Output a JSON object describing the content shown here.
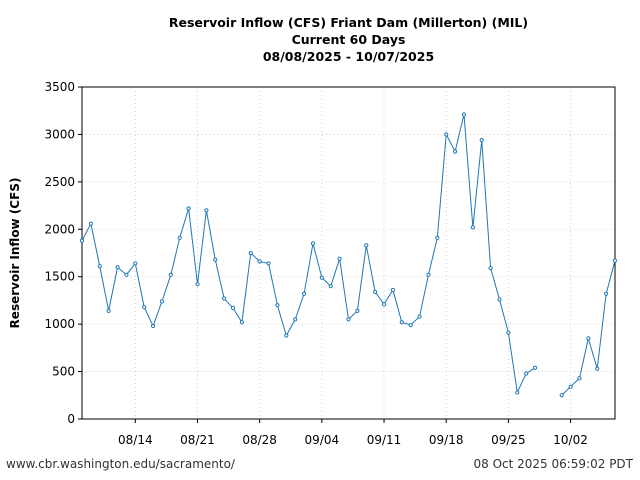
{
  "chart_data": {
    "type": "line",
    "title_lines": [
      "Reservoir Inflow (CFS) Friant Dam (Millerton) (MIL)",
      "Current 60 Days",
      "08/08/2025 - 10/07/2025"
    ],
    "xlabel": "",
    "ylabel": "Reservoir Inflow (CFS)",
    "x_tick_labels": [
      "08/14",
      "08/21",
      "08/28",
      "09/04",
      "09/11",
      "09/18",
      "09/25",
      "10/02"
    ],
    "y_tick_labels": [
      "0",
      "500",
      "1000",
      "1500",
      "2000",
      "2500",
      "3000",
      "3500"
    ],
    "ylim": [
      0,
      3500
    ],
    "grid": true,
    "line_color": "#1f77b4",
    "series": [
      {
        "x": [
          "08/08",
          "08/09",
          "08/10",
          "08/11",
          "08/12",
          "08/13",
          "08/14",
          "08/15",
          "08/16",
          "08/17",
          "08/18",
          "08/19",
          "08/20",
          "08/21",
          "08/22",
          "08/23",
          "08/24",
          "08/25",
          "08/26",
          "08/27",
          "08/28",
          "08/29",
          "08/30",
          "08/31",
          "09/01",
          "09/02",
          "09/03",
          "09/04",
          "09/05",
          "09/06",
          "09/07",
          "09/08",
          "09/09",
          "09/10",
          "09/11",
          "09/12",
          "09/13",
          "09/14",
          "09/15",
          "09/16",
          "09/17",
          "09/18",
          "09/19",
          "09/20",
          "09/21",
          "09/22",
          "09/23",
          "09/24",
          "09/25",
          "09/26",
          "09/27",
          "09/28",
          "09/29",
          "09/30",
          "10/01",
          "10/02",
          "10/03",
          "10/04",
          "10/05",
          "10/06",
          "10/07"
        ],
        "y": [
          1880,
          2060,
          1610,
          1140,
          1600,
          1520,
          1640,
          1180,
          980,
          1240,
          1520,
          1910,
          2220,
          1420,
          2200,
          1680,
          1270,
          1170,
          1020,
          1750,
          1660,
          1640,
          1200,
          880,
          1050,
          1320,
          1850,
          1490,
          1400,
          1690,
          1050,
          1140,
          1830,
          1340,
          1210,
          1360,
          1020,
          990,
          1080,
          1520,
          1910,
          3000,
          2820,
          3210,
          2020,
          2940,
          1590,
          1260,
          910,
          280,
          480,
          540,
          null,
          null,
          250,
          340,
          430,
          850,
          530,
          1320,
          1670
        ]
      }
    ],
    "annotations": {
      "source": "www.cbr.washington.edu/sacramento/",
      "timestamp": "08 Oct 2025 06:59:02 PDT"
    }
  }
}
